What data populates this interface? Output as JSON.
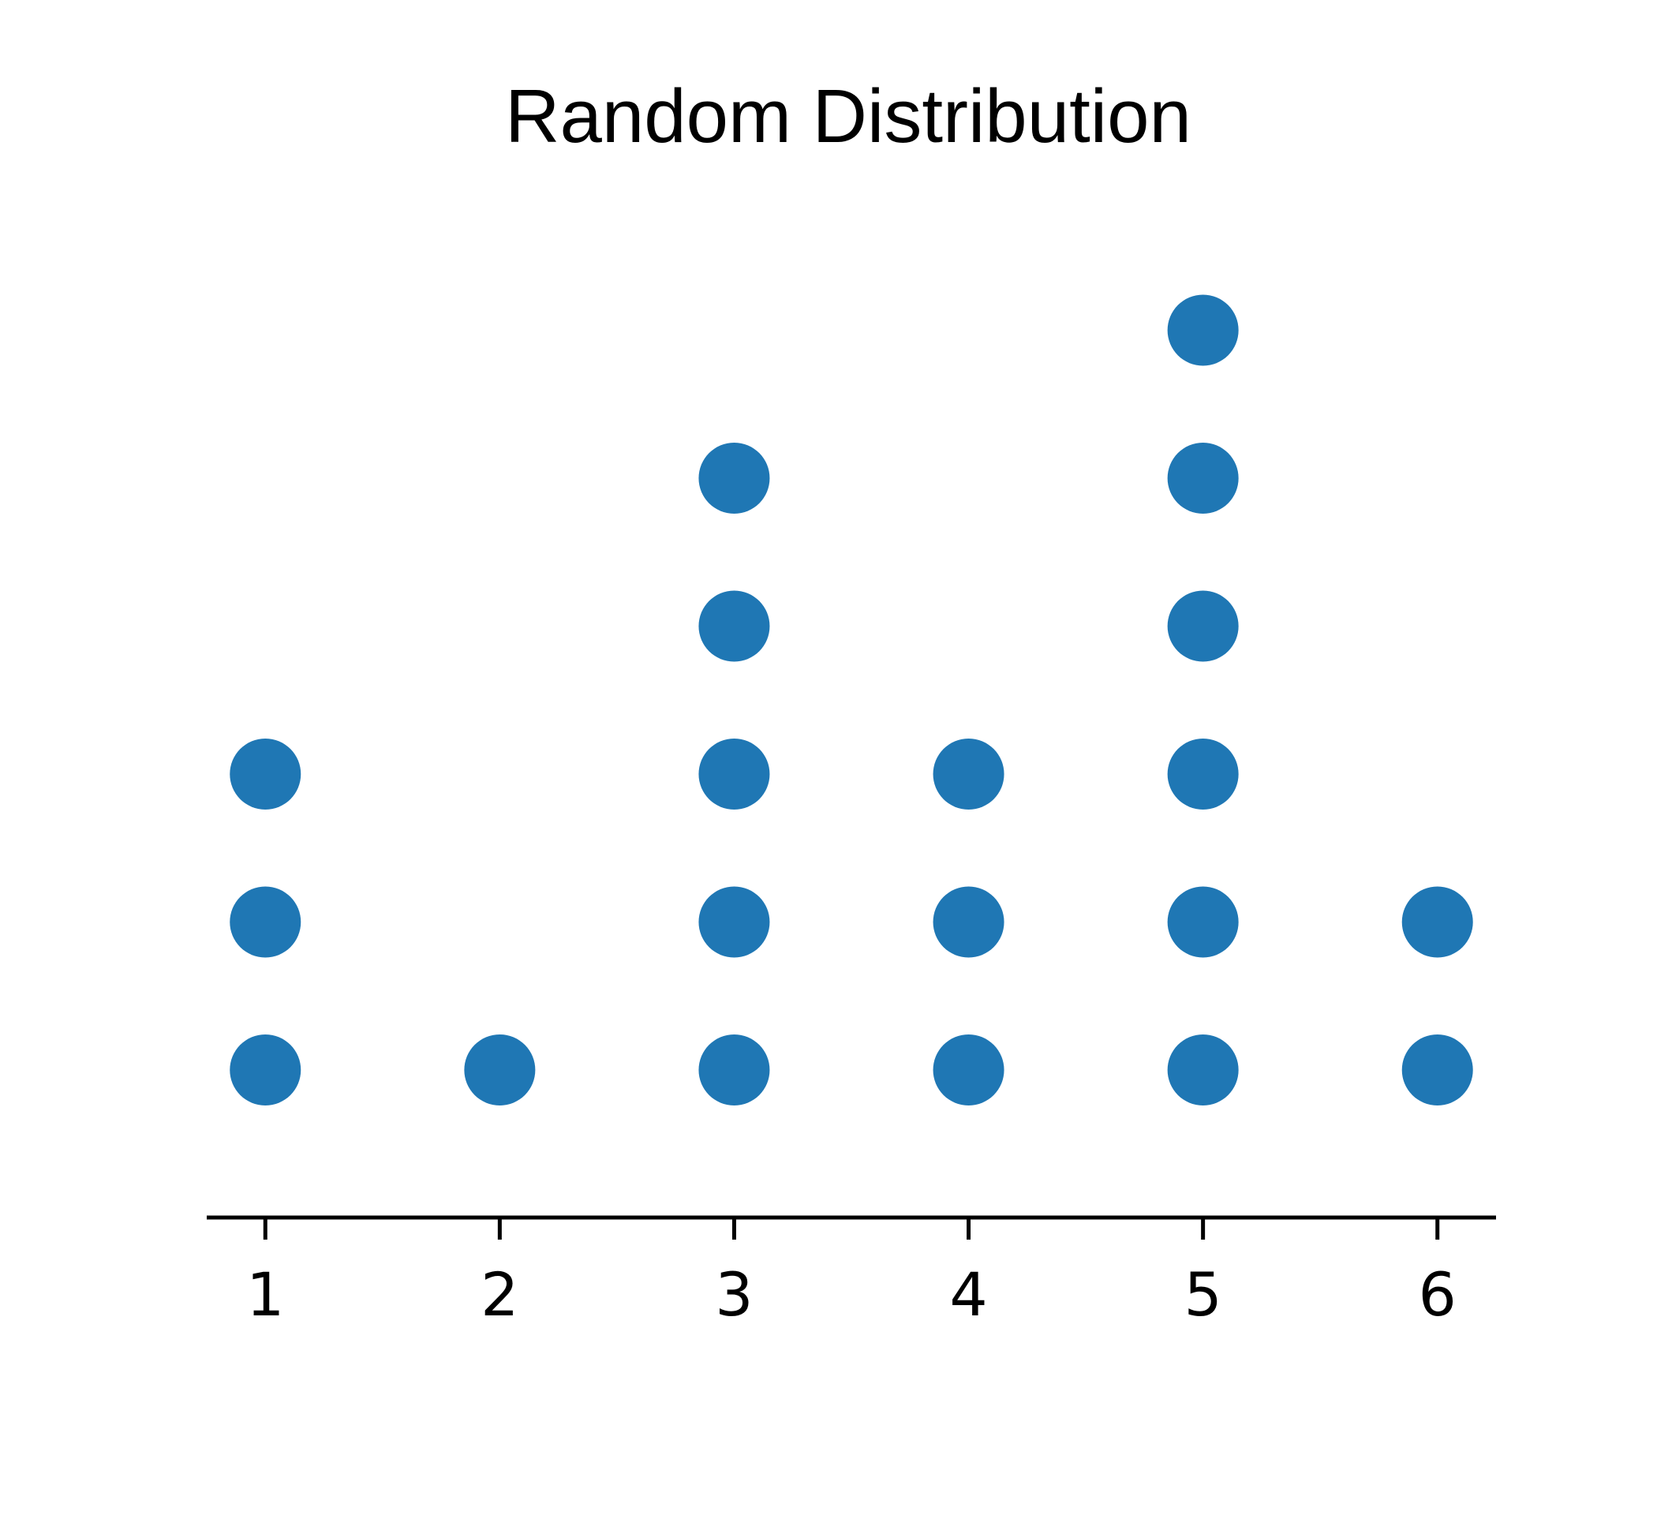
{
  "chart_data": {
    "type": "scatter",
    "subtype": "dot-plot",
    "title": "Random Distribution",
    "xlabel": "",
    "ylabel": "",
    "x_ticks": [
      "1",
      "2",
      "3",
      "4",
      "5",
      "6"
    ],
    "categories": [
      1,
      2,
      3,
      4,
      5,
      6
    ],
    "counts": [
      3,
      1,
      5,
      3,
      6,
      2
    ],
    "xlim": [
      0.75,
      6.25
    ],
    "ylim": [
      0,
      7
    ],
    "grid": false,
    "legend": "none",
    "y_axis_visible": false,
    "marker_color": "#1f77b4",
    "axis_color": "#000000"
  }
}
